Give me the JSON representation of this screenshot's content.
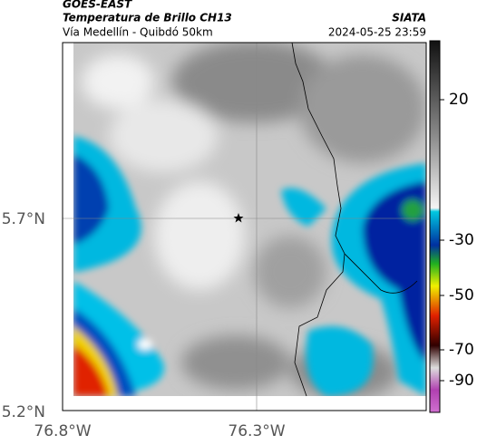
{
  "header": {
    "product": "GOES-EAST",
    "title": "Temperatura de Brillo CH13",
    "subtitle": "Vía Medellín - Quibdó 50km",
    "source": "SIATA",
    "timestamp": "2024-05-25 23:59"
  },
  "map": {
    "x_ticks": [
      "76.8°W",
      "76.3°W"
    ],
    "y_ticks": [
      "5.7°N",
      "5.2°N"
    ]
  },
  "colorbar": {
    "ticks": [
      "20",
      "-30",
      "-50",
      "-70",
      "-90"
    ]
  }
}
